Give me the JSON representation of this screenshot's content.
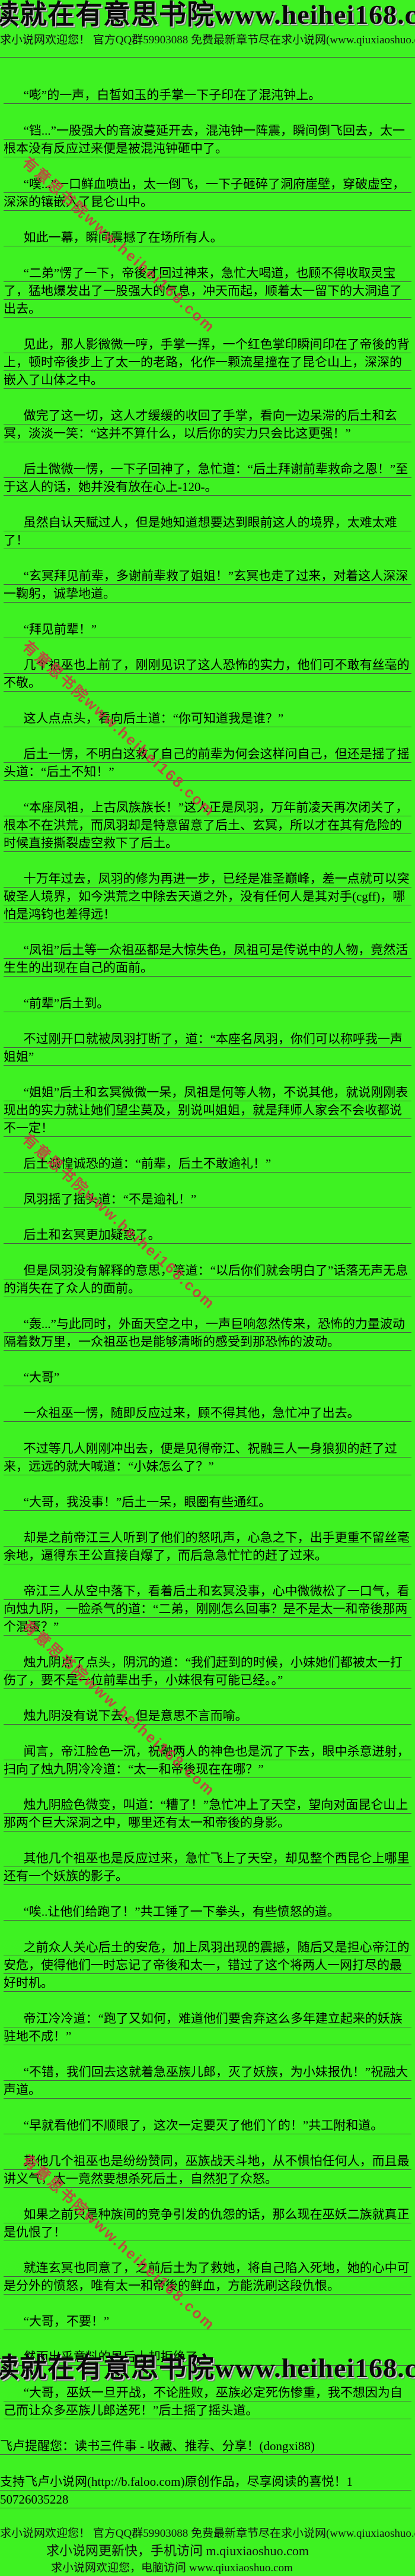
{
  "colors": {
    "background": "#3ef222",
    "text": "#000000",
    "rule_line": "#4a5a48",
    "watermark_red": "#cc3344",
    "banner_shadow": "#6a6a6a"
  },
  "header": {
    "banner": "读就在有意思书院www.heihei168.com",
    "ad_line": "求小说网欢迎您！ 官方QQ群59903088 免费最新章节尽在求小说网(www.qiuxiaoshuo.com)"
  },
  "watermark": {
    "text": "有意思书院www.heihei168.com"
  },
  "paragraphs": [
    "“嘭”的一声，白皙如玉的手掌一下子印在了混沌钟上。",
    "“铛...”一股强大的音波蔓延开去，混沌钟一阵震，瞬间倒飞回去，太一根本没有反应过来便是被混沌钟砸中了。",
    "“噗...”一口鲜血喷出，太一倒飞，一下子砸碎了洞府崖壁，穿破虚空，深深的镶嵌入了昆仑山中。",
    "如此一幕，瞬间震撼了在场所有人。",
    "“二弟”愣了一下，帝後才回过神来，急忙大喝道，也顾不得收取灵宝了，猛地爆发出了一股强大的气息，冲天而起，顺着太一留下的大洞追了出去。",
    "见此，那人影微微一哼，手掌一挥，一个红色掌印瞬间印在了帝後的背上，顿时帝後步上了太一的老路，化作一颗流星撞在了昆仑山上，深深的嵌入了山体之中。",
    "做完了这一切，这人才缓缓的收回了手掌，看向一边呆滞的后土和玄冥，淡淡一笑：“这并不算什么，以后你的实力只会比这更强！”",
    "后土微微一愣，一下子回神了，急忙道：“后土拜谢前辈救命之恩！”至于这人的话，她并没有放在心上-120-。",
    "虽然自认天赋过人，但是她知道想要达到眼前这人的境界，太难太难了！",
    "“玄冥拜见前辈，多谢前辈救了姐姐！”玄冥也走了过来，对着这人深深一鞠躬，诚挚地道。",
    "“拜见前辈！”",
    "几个祖巫也上前了，刚刚见识了这人恐怖的实力，他们可不敢有丝毫的不敬。",
    "这人点点头，看向后土道：“你可知道我是谁？”",
    "后土一愣，不明白这救了自己的前辈为何会这样问自己，但还是摇了摇头道：“后土不知！”",
    "“本座凤祖，上古凤族族长！”这人正是凤羽，万年前凌天再次闭关了，根本不在洪荒，而凤羽却是特意留意了后土、玄冥，所以才在其有危险的时候直接撕裂虚空救下了后土。",
    "十万年过去，凤羽的修为再进一步，已经是准圣巅峰，差一点就可以突破圣人境界，如今洪荒之中除去天道之外，没有任何人是其对手(cgff)，哪怕是鸿钧也差得远！",
    "“凤祖”后土等一众祖巫都是大惊失色，凤祖可是传说中的人物，竟然活生生的出现在自己的面前。",
    "“前辈”后土到。",
    "不过刚开口就被凤羽打断了，道：“本座名凤羽，你们可以称呼我一声姐姐”",
    "“姐姐”后土和玄冥微微一呆，凤祖是何等人物，不说其他，就说刚刚表现出的实力就让她们望尘莫及，别说叫姐姐，就是拜师人家会不会收都说不一定！",
    "后土诚惶诚恐的道：“前辈，后土不敢逾礼！”",
    "凤羽摇了摇头道：“不是逾礼！”",
    "后土和玄冥更加疑惑了。",
    "但是凤羽没有解释的意思，笑道：“以后你们就会明白了”话落无声无息的消失在了众人的面前。",
    "“轰...”与此同时，外面天空之中，一声巨响忽然传来，恐怖的力量波动隔着数万里，一众祖巫也是能够清晰的感受到那恐怖的波动。",
    "“大哥”",
    "一众祖巫一愣，随即反应过来，顾不得其他，急忙冲了出去。",
    "不过等几人刚刚冲出去，便是见得帝江、祝融三人一身狼狈的赶了过来，远远的就大喊道：“小妹怎么了？”",
    "“大哥，我没事！”后土一呆，眼圈有些通红。",
    "却是之前帝江三人听到了他们的怒吼声，心急之下，出手更重不留丝毫余地，逼得东王公直接自爆了，而后急急忙忙的赶了过来。",
    "帝江三人从空中落下，看着后土和玄冥没事，心中微微松了一口气，看向烛九阴，一脸杀气的道：“二弟，刚刚怎么回事？是不是太一和帝後那两个混蛋？”",
    "烛九阴点了点头，阴沉的道：“我们赶到的时候，小妹她们都被太一打伤了，要不是一位前辈出手，小妹很有可能已经。。”",
    "烛九阴没有说下去，但是意思不言而喻。",
    "闻言，帝江脸色一沉，祝融两人的神色也是沉了下去，眼中杀意迸射，扫向了烛九阴冷冷道：“太一和帝後现在在哪？”",
    "烛九阴脸色微变，叫道：“糟了！”急忙冲上了天空，望向对面昆仑山上那两个巨大深洞之中，哪里还有太一和帝後的身影。",
    "其他几个祖巫也是反应过来，急忙飞上了天空，却见整个西昆仑上哪里还有一个妖族的影子。",
    "“唉..让他们给跑了！”共工锤了一下拳头，有些愤怒的道。",
    "之前众人关心后土的安危，加上凤羽出现的震撼，随后又是担心帝江的安危，使得他们一时忘记了帝後和太一，错过了这个将两人一网打尽的最好时机。",
    "帝江冷冷道：“跑了又如何，难道他们要舍弃这么多年建立起来的妖族驻地不成！”",
    "“不错，我们回去这就着急巫族儿郎，灭了妖族，为小妹报仇！”祝融大声道。",
    "“早就看他们不顺眼了，这次一定要灭了他们丫的！”共工附和道。",
    "其他几个祖巫也是纷纷赞同，巫族战天斗地，从不惧怕任何人，而且最讲义气，太一竟然要想杀死后土，自然犯了众怒。",
    "如果之前只是种族间的竞争引发的仇怨的话，那么现在巫妖二族就真正是仇恨了！",
    "就连玄冥也同意了，之前后土为了救她，将自己陷入死地，她的心中可是分外的愤怒，唯有太一和帝後的鲜血，方能洗刷这段仇恨。",
    "“大哥，不要！”",
    "然而出乎意料的是后土却拒绝了。",
    "“大哥，巫妖一旦开战，不论胜败，巫族必定死伤惨重，我不想因为自己而让众多巫族儿郎送死！”后土摇了摇头道。"
  ],
  "footer": {
    "faloo_reminder": "飞卢提醒您：读书三件事 - 收藏、推荐、分享！(dongxi88)",
    "faloo_support": "支持飞卢小说网(http://b.faloo.com)原创作品，尽享阅读的喜悦！1\n50726035228",
    "ad_line1": "求小说网欢迎您！ 官方QQ群59903088 免费最新章节尽在求小说网(www.qiuxiaoshuo.com)",
    "ad_line2": "求小说网更新快，手机访问 m.qiuxiaoshuo.com",
    "ad_line3": "求小说网欢迎您，电脑访问 www.qiuxiaoshuo.com",
    "banner": "读就在有意思书院www.heihei168.com"
  }
}
